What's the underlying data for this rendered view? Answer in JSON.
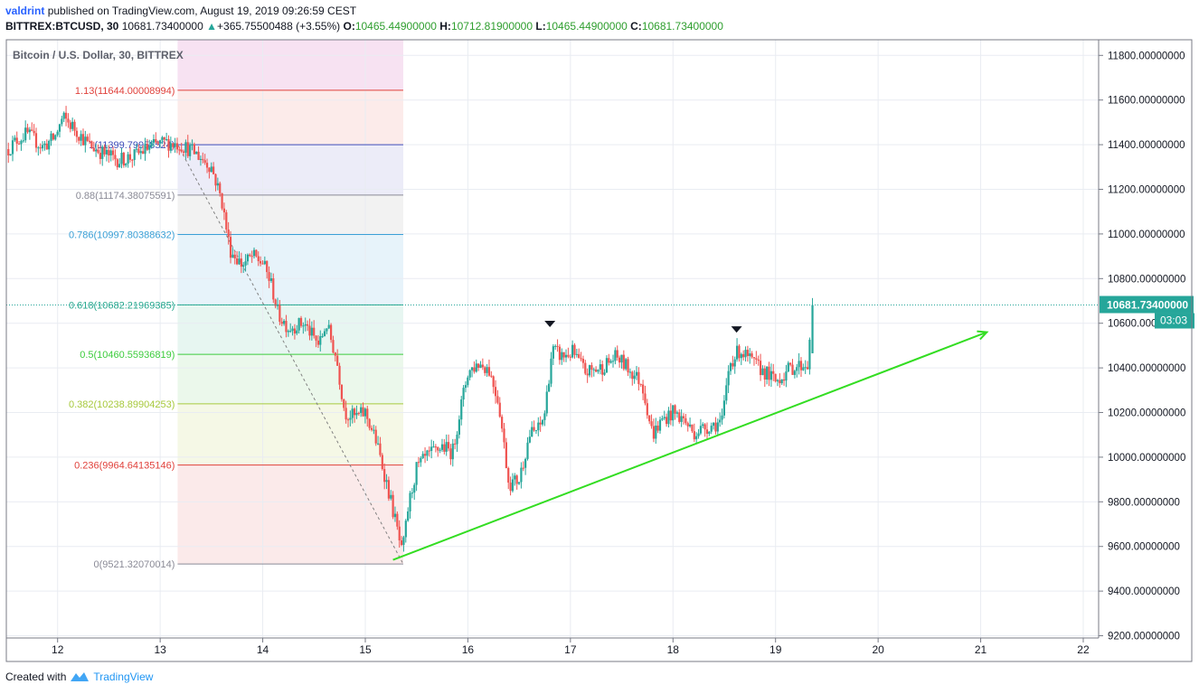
{
  "header": {
    "author": "valdrint",
    "published_text": "published on TradingView.com, August 19, 2019 09:26:59 CEST",
    "symbol": "BITTREX:BTCUSD, 30",
    "last": "10681.73400000",
    "change": "+365.75500488 (+3.55%)",
    "o_label": "O:",
    "o_value": "10465.44900000",
    "h_label": "H:",
    "h_value": "10712.81900000",
    "l_label": "L:",
    "l_value": "10465.44900000",
    "c_label": "C:",
    "c_value": "10681.73400000"
  },
  "footer": {
    "created_with": "Created with",
    "brand": "TradingView"
  },
  "chart_data": {
    "type": "candlestick",
    "title": "Bitcoin / U.S. Dollar, 30, BITTREX",
    "x_ticks": [
      "12",
      "13",
      "14",
      "15",
      "16",
      "17",
      "18",
      "19",
      "20",
      "21",
      "22"
    ],
    "xlim": [
      11.5,
      22.15
    ],
    "y_ticks": [
      "11800.00000000",
      "11600.00000000",
      "11400.00000000",
      "11200.00000000",
      "11000.00000000",
      "10800.00000000",
      "10600.00000000",
      "10400.00000000",
      "10200.00000000",
      "10000.00000000",
      "9800.00000000",
      "9600.00000000",
      "9400.00000000",
      "9200.00000000"
    ],
    "ylim": [
      9190,
      11870
    ],
    "grid": true,
    "last_price_label": "10681.73400000",
    "countdown_label": "03:03",
    "colors": {
      "up": "#26a69a",
      "down": "#ef5350",
      "grid": "#e9ecf2",
      "trend": "#33dd22",
      "last_price": "#26a69a"
    },
    "price_path": [
      [
        11.52,
        11380
      ],
      [
        11.6,
        11420
      ],
      [
        11.7,
        11450
      ],
      [
        11.85,
        11390
      ],
      [
        11.97,
        11430
      ],
      [
        12.05,
        11520
      ],
      [
        12.15,
        11480
      ],
      [
        12.3,
        11400
      ],
      [
        12.45,
        11360
      ],
      [
        12.6,
        11330
      ],
      [
        12.75,
        11350
      ],
      [
        12.9,
        11390
      ],
      [
        13.05,
        11410
      ],
      [
        13.2,
        11400
      ],
      [
        13.35,
        11360
      ],
      [
        13.5,
        11300
      ],
      [
        13.6,
        11150
      ],
      [
        13.68,
        10930
      ],
      [
        13.8,
        10860
      ],
      [
        13.9,
        10900
      ],
      [
        14.0,
        10870
      ],
      [
        14.08,
        10780
      ],
      [
        14.15,
        10640
      ],
      [
        14.25,
        10580
      ],
      [
        14.4,
        10600
      ],
      [
        14.55,
        10500
      ],
      [
        14.62,
        10600
      ],
      [
        14.72,
        10440
      ],
      [
        14.8,
        10200
      ],
      [
        14.9,
        10180
      ],
      [
        15.0,
        10200
      ],
      [
        15.1,
        10080
      ],
      [
        15.2,
        9900
      ],
      [
        15.3,
        9700
      ],
      [
        15.36,
        9560
      ],
      [
        15.42,
        9780
      ],
      [
        15.5,
        9950
      ],
      [
        15.6,
        10000
      ],
      [
        15.75,
        10050
      ],
      [
        15.85,
        10020
      ],
      [
        15.92,
        10200
      ],
      [
        16.0,
        10380
      ],
      [
        16.1,
        10420
      ],
      [
        16.2,
        10400
      ],
      [
        16.3,
        10250
      ],
      [
        16.4,
        9880
      ],
      [
        16.5,
        9900
      ],
      [
        16.6,
        10100
      ],
      [
        16.7,
        10130
      ],
      [
        16.75,
        10200
      ],
      [
        16.82,
        10480
      ],
      [
        16.92,
        10450
      ],
      [
        17.02,
        10470
      ],
      [
        17.15,
        10380
      ],
      [
        17.3,
        10400
      ],
      [
        17.45,
        10450
      ],
      [
        17.6,
        10380
      ],
      [
        17.7,
        10330
      ],
      [
        17.8,
        10100
      ],
      [
        17.9,
        10170
      ],
      [
        18.0,
        10200
      ],
      [
        18.1,
        10170
      ],
      [
        18.2,
        10110
      ],
      [
        18.35,
        10140
      ],
      [
        18.48,
        10160
      ],
      [
        18.55,
        10420
      ],
      [
        18.65,
        10480
      ],
      [
        18.78,
        10420
      ],
      [
        18.9,
        10380
      ],
      [
        19.0,
        10340
      ],
      [
        19.15,
        10400
      ],
      [
        19.32,
        10420
      ],
      [
        19.36,
        10682
      ]
    ],
    "last_candle": {
      "x": 19.36,
      "open": 10465.449,
      "high": 10712.819,
      "low": 10465.449,
      "close": 10681.734
    },
    "fib": {
      "x_range": [
        13.17,
        15.37
      ],
      "levels": [
        {
          "label": "1.13(11644.00008994)",
          "price": 11644.00008994,
          "color": "#e0413b",
          "fill": "#f7e2f2"
        },
        {
          "label": "1(11399.79958524)",
          "price": 11399.79958524,
          "color": "#3f4dba",
          "fill": "#fcebea"
        },
        {
          "label": "0.88(11174.38075591)",
          "price": 11174.38075591,
          "color": "#8a8a96",
          "fill": "#ececf8"
        },
        {
          "label": "0.786(10997.80388632)",
          "price": 10997.80388632,
          "color": "#3aa0d6",
          "fill": "#f2f2f2"
        },
        {
          "label": "0.618(10682.21969385)",
          "price": 10682.21969385,
          "color": "#2aa88e",
          "fill": "#e7f3fa"
        },
        {
          "label": "0.5(10460.55936819)",
          "price": 10460.55936819,
          "color": "#3ccc3c",
          "fill": "#e7f6f1"
        },
        {
          "label": "0.382(10238.89904253)",
          "price": 10238.89904253,
          "color": "#a7c93c",
          "fill": "#ebf8eb"
        },
        {
          "label": "0.236(9964.64135146)",
          "price": 9964.64135146,
          "color": "#e0413b",
          "fill": "#f5f8e6"
        },
        {
          "label": "0(9521.32070014)",
          "price": 9521.32070014,
          "color": "#8a8a96",
          "fill": "#fbeaea"
        }
      ],
      "diagonal": [
        [
          13.17,
          11399.8
        ],
        [
          15.37,
          9521.3
        ]
      ]
    },
    "trendline": [
      [
        15.27,
        9540
      ],
      [
        21.06,
        10560
      ]
    ],
    "markers": [
      [
        16.8,
        10595
      ],
      [
        18.62,
        10570
      ]
    ]
  }
}
